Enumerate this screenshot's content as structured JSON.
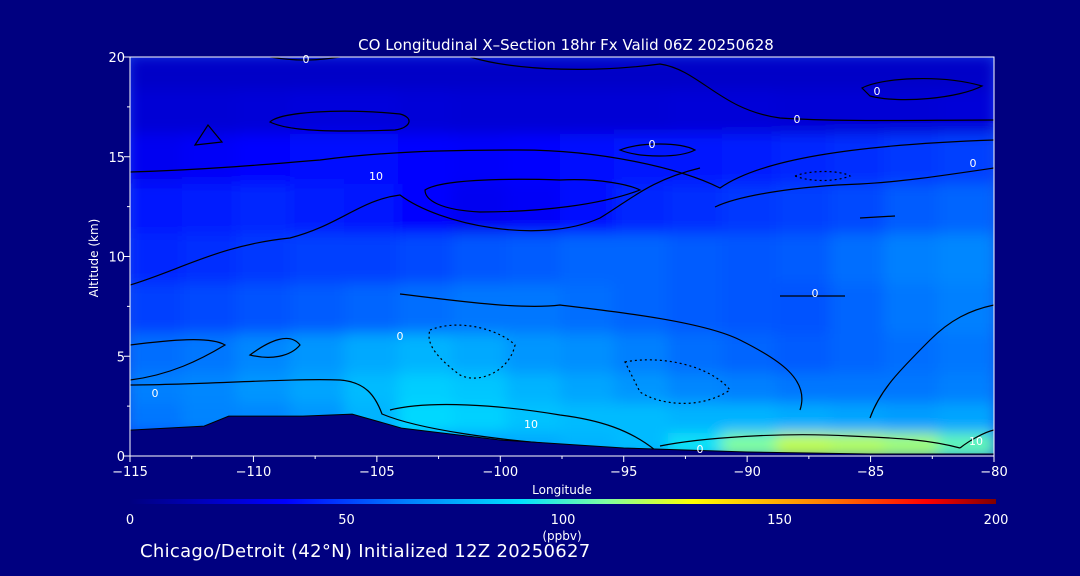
{
  "chart_data": {
    "type": "heatmap",
    "title": "CO Longitudinal X–Section 18hr  Fx Valid 06Z 20250628",
    "xlabel": "Longitude",
    "ylabel": "Altitude (km)",
    "xlim": [
      -115,
      -80
    ],
    "ylim": [
      0,
      20
    ],
    "xticks": [
      -115,
      -110,
      -105,
      -100,
      -95,
      -90,
      -85,
      -80
    ],
    "xtick_labels": [
      "−115",
      "−110",
      "−105",
      "−100",
      "−95",
      "−90",
      "−85",
      "−80"
    ],
    "yticks": [
      0,
      5,
      10,
      15,
      20
    ],
    "ytick_labels": [
      "0",
      "5",
      "10",
      "15",
      "20"
    ],
    "colorbar": {
      "label": "(ppbv)",
      "range": [
        0,
        200
      ],
      "ticks": [
        0,
        50,
        100,
        150,
        200
      ],
      "tick_labels": [
        "0",
        "50",
        "100",
        "150",
        "200"
      ]
    },
    "contour_labels": [
      "0",
      "0",
      "0",
      "0",
      "0",
      "0",
      "0",
      "0",
      "0",
      "10",
      "10",
      "10"
    ],
    "field_rows": [
      {
        "alt": 0.5,
        "values": [
          38,
          38,
          38,
          45,
          50,
          70,
          72,
          75,
          78,
          80,
          92,
          110,
          120,
          118,
          115,
          105
        ]
      },
      {
        "alt": 2,
        "values": [
          62,
          65,
          66,
          70,
          78,
          88,
          86,
          82,
          80,
          80,
          78,
          78,
          76,
          74,
          72,
          74
        ]
      },
      {
        "alt": 3.5,
        "values": [
          64,
          66,
          70,
          74,
          80,
          85,
          83,
          78,
          74,
          70,
          66,
          64,
          62,
          62,
          62,
          64
        ]
      },
      {
        "alt": 5,
        "values": [
          60,
          62,
          66,
          70,
          75,
          78,
          75,
          70,
          68,
          64,
          60,
          58,
          56,
          58,
          60,
          62
        ]
      },
      {
        "alt": 7.5,
        "values": [
          50,
          52,
          54,
          56,
          58,
          60,
          62,
          62,
          60,
          58,
          56,
          55,
          54,
          58,
          62,
          64
        ]
      },
      {
        "alt": 10,
        "values": [
          44,
          46,
          48,
          50,
          50,
          52,
          55,
          56,
          58,
          58,
          56,
          55,
          56,
          60,
          64,
          66
        ]
      },
      {
        "alt": 12.5,
        "values": [
          40,
          42,
          44,
          42,
          40,
          36,
          32,
          34,
          38,
          44,
          46,
          48,
          50,
          52,
          56,
          58
        ]
      },
      {
        "alt": 15,
        "values": [
          32,
          34,
          36,
          38,
          38,
          36,
          35,
          36,
          38,
          40,
          40,
          42,
          44,
          46,
          48,
          50
        ]
      },
      {
        "alt": 17.5,
        "values": [
          24,
          24,
          25,
          26,
          26,
          25,
          24,
          24,
          24,
          24,
          25,
          25,
          24,
          24,
          24,
          25
        ]
      },
      {
        "alt": 19.5,
        "values": [
          20,
          20,
          20,
          20,
          20,
          20,
          20,
          20,
          20,
          20,
          20,
          20,
          20,
          20,
          20,
          20
        ]
      }
    ],
    "terrain": [
      {
        "lon": -115,
        "alt": 1.3
      },
      {
        "lon": -112,
        "alt": 1.5
      },
      {
        "lon": -111,
        "alt": 2.0
      },
      {
        "lon": -108,
        "alt": 2.0
      },
      {
        "lon": -106,
        "alt": 2.1
      },
      {
        "lon": -104,
        "alt": 1.4
      },
      {
        "lon": -100,
        "alt": 0.8
      },
      {
        "lon": -95,
        "alt": 0.4
      },
      {
        "lon": -90,
        "alt": 0.2
      },
      {
        "lon": -85,
        "alt": 0.1
      },
      {
        "lon": -80,
        "alt": 0.1
      }
    ]
  },
  "caption": "Chicago/Detroit (42°N) Initialized 12Z 20250627",
  "colors": {
    "background": "#000080",
    "axis": "#ffffff",
    "contour": "#000000",
    "terrain": "#000080"
  }
}
